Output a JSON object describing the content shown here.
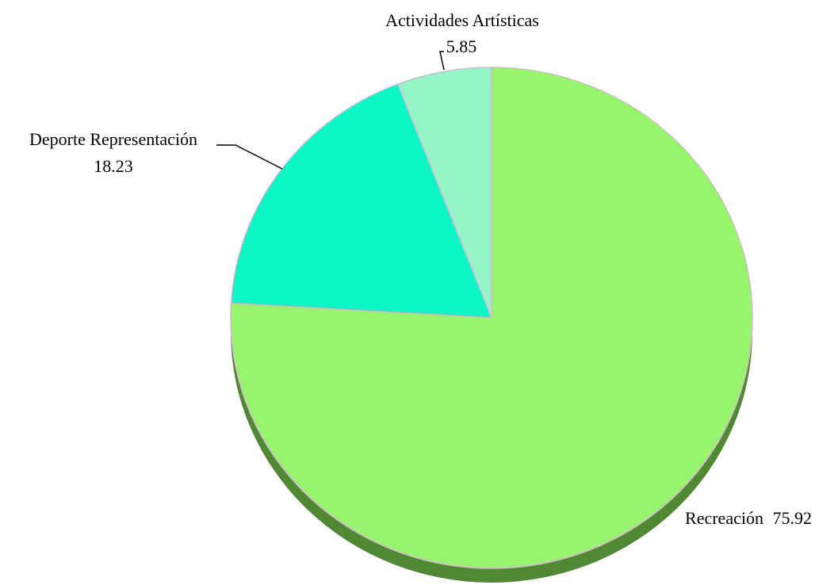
{
  "chart_data": {
    "type": "pie",
    "title": "",
    "style": "3d",
    "start_angle_deg": 0,
    "direction": "clockwise",
    "slices": [
      {
        "name": "Recreación",
        "value": 75.92,
        "value_label": "75.92",
        "color": "#96f56b",
        "side_color": "#4f8a33"
      },
      {
        "name": "Deporte Representación",
        "value": 18.23,
        "value_label": "18.23",
        "color": "#0cf5c5",
        "side_color": "#07a586"
      },
      {
        "name": "Actividades Artísticas",
        "value": 5.85,
        "value_label": "5.85",
        "color": "#95f5c6",
        "side_color": "#5fbf93"
      }
    ],
    "legend": "none",
    "grid": false
  }
}
